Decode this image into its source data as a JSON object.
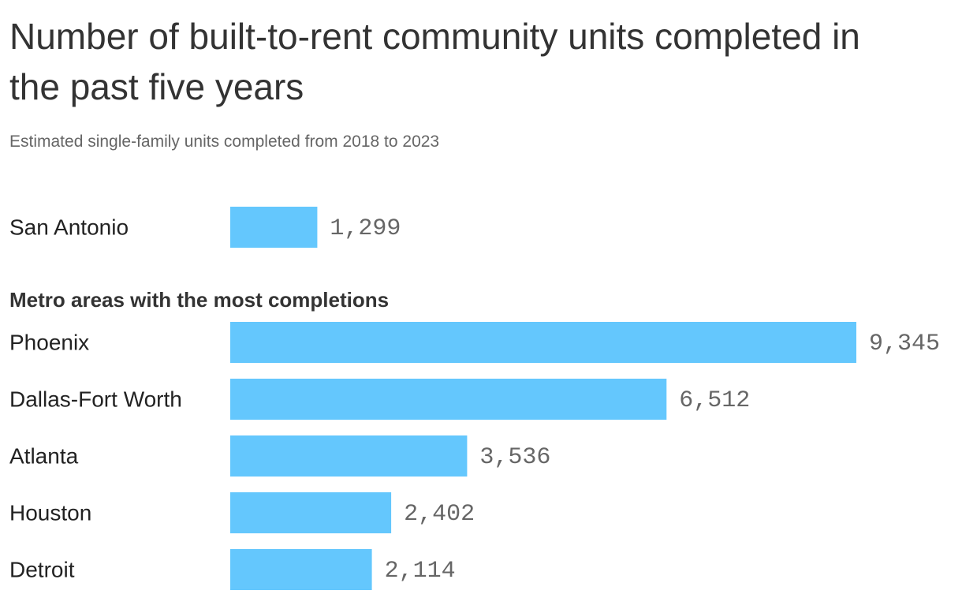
{
  "title": "Number of built-to-rent community units completed in the past five years",
  "subtitle": "Estimated single-family units completed from 2018 to 2023",
  "group_heading": "Metro areas with the most completions",
  "bar_color": "#64C7FD",
  "chart_data": {
    "type": "bar",
    "orientation": "horizontal",
    "title": "Number of built-to-rent community units completed in the past five years",
    "subtitle": "Estimated single-family units completed from 2018 to 2023",
    "xlabel": "",
    "ylabel": "",
    "grid": false,
    "legend": "none",
    "xlim": [
      0,
      9345
    ],
    "highlight": {
      "category": "San Antonio",
      "value": 1299,
      "display": "1,299"
    },
    "group_heading": "Metro areas with the most completions",
    "categories": [
      "Phoenix",
      "Dallas-Fort Worth",
      "Atlanta",
      "Houston",
      "Detroit"
    ],
    "values": [
      9345,
      6512,
      3536,
      2402,
      2114
    ],
    "value_labels": [
      "9,345",
      "6,512",
      "3,536",
      "2,402",
      "2,114"
    ]
  }
}
